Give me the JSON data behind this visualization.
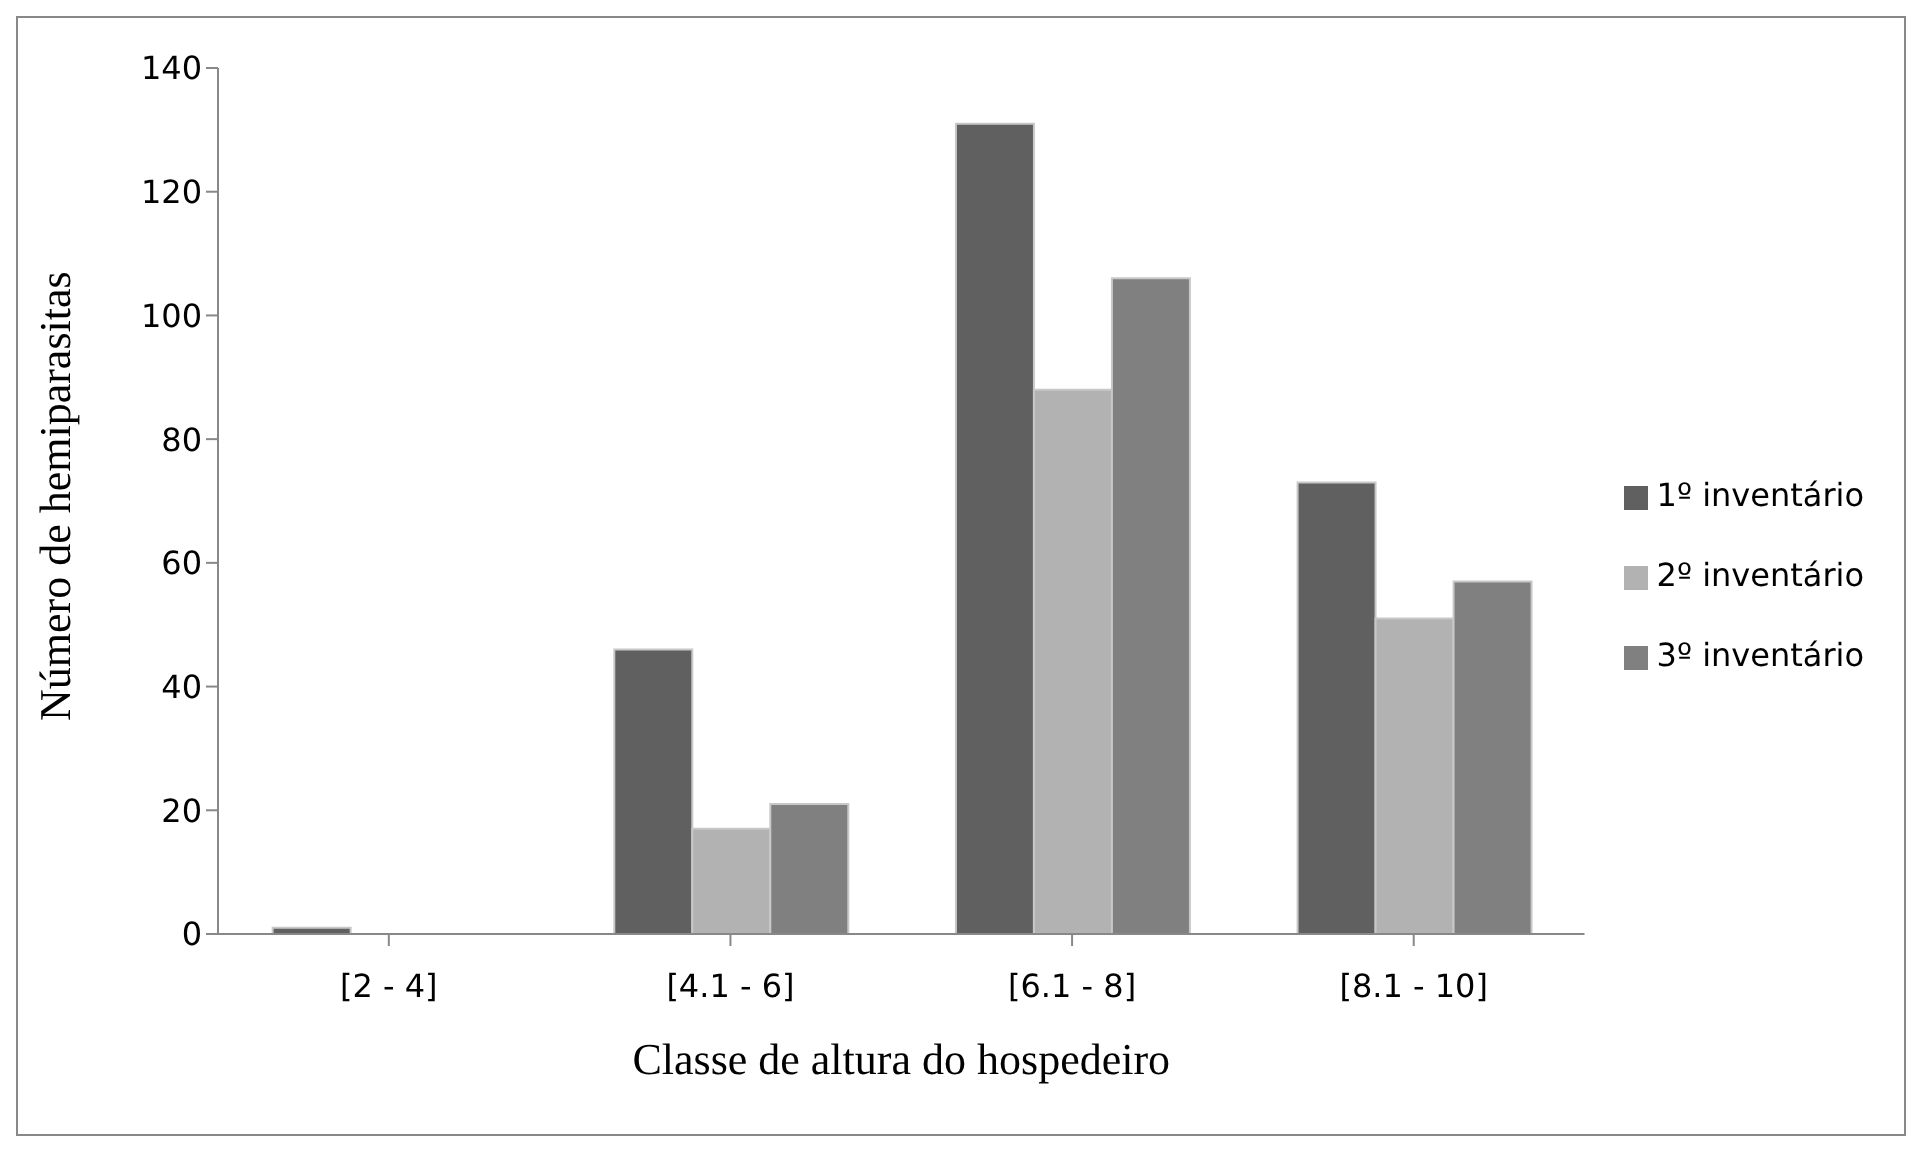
{
  "chart_data": {
    "type": "bar",
    "xlabel": "Classe de altura do hospedeiro",
    "ylabel": "Número de hemiparasitas",
    "categories": [
      "[2 - 4]",
      "[4.1 - 6]",
      "[6.1 - 8]",
      "[8.1 - 10]"
    ],
    "series": [
      {
        "name": "1º inventário",
        "color": "#606060",
        "values": [
          1,
          46,
          131,
          73
        ]
      },
      {
        "name": "2º inventário",
        "color": "#b2b2b2",
        "values": [
          0,
          17,
          88,
          51
        ]
      },
      {
        "name": "3º inventário",
        "color": "#808080",
        "values": [
          0,
          21,
          106,
          57
        ]
      }
    ],
    "ylim": [
      0,
      140
    ],
    "yticks": [
      0,
      20,
      40,
      60,
      80,
      100,
      120,
      140
    ],
    "grid": false,
    "legend": "right"
  }
}
